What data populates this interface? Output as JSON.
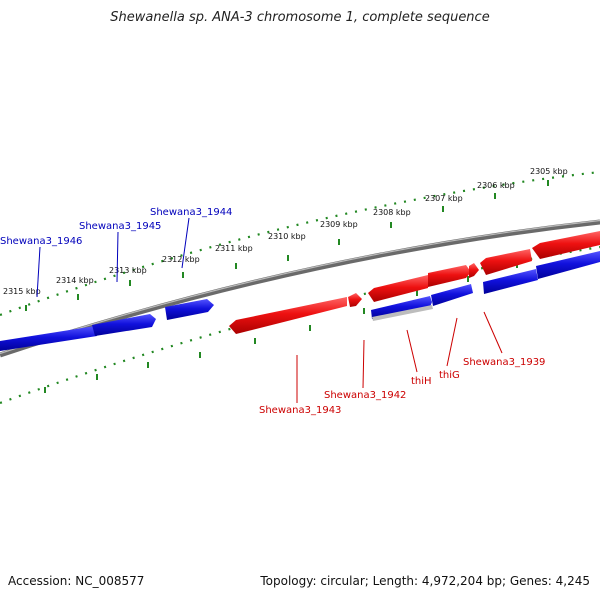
{
  "title": "Shewanella sp. ANA-3 chromosome 1, complete sequence",
  "footer": {
    "accession": "Accession: NC_008577",
    "topology": "Topology: circular; Length: 4,972,204 bp; Genes: 4,245"
  },
  "colors": {
    "forward": "#ee1111",
    "reverse": "#1111dd",
    "backbone": "#777777",
    "ticks": "#228822",
    "forward_label": "#cc0000",
    "reverse_label": "#0000bb"
  },
  "tick_labels": [
    "2305 kbp",
    "2306 kbp",
    "2307 kbp",
    "2308 kbp",
    "2309 kbp",
    "2310 kbp",
    "2311 kbp",
    "2312 kbp",
    "2313 kbp",
    "2314 kbp",
    "2315 kbp"
  ],
  "reverse_gene_labels": [
    "Shewana3_1946",
    "Shewana3_1945",
    "Shewana3_1944"
  ],
  "forward_gene_labels": [
    "Shewana3_1943",
    "Shewana3_1942",
    "thiH",
    "thiG",
    "Shewana3_1939"
  ]
}
